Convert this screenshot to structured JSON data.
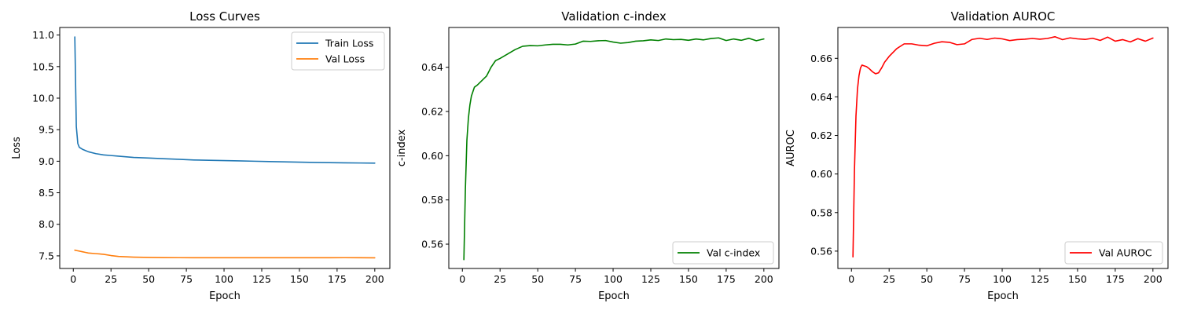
{
  "chart_data": [
    {
      "type": "line",
      "title": "Loss Curves",
      "xlabel": "Epoch",
      "ylabel": "Loss",
      "xlim": [
        -9,
        210
      ],
      "ylim": [
        7.3,
        11.12
      ],
      "xticks": [
        0,
        25,
        50,
        75,
        100,
        125,
        150,
        175,
        200
      ],
      "yticks": [
        7.5,
        8.0,
        8.5,
        9.0,
        9.5,
        10.0,
        10.5,
        11.0
      ],
      "ytick_decimals": 1,
      "grid": false,
      "legend_position": "top-right",
      "x": [
        1,
        2,
        3,
        4,
        6,
        8,
        10,
        15,
        20,
        25,
        30,
        40,
        50,
        60,
        70,
        80,
        90,
        100,
        110,
        120,
        130,
        140,
        150,
        160,
        170,
        180,
        190,
        200
      ],
      "series": [
        {
          "name": "Train Loss",
          "color": "#1f77b4",
          "values": [
            10.97,
            9.55,
            9.28,
            9.22,
            9.19,
            9.17,
            9.15,
            9.12,
            9.1,
            9.09,
            9.08,
            9.06,
            9.05,
            9.04,
            9.03,
            9.02,
            9.015,
            9.01,
            9.005,
            9.0,
            8.995,
            8.99,
            8.985,
            8.98,
            8.978,
            8.975,
            8.972,
            8.97
          ]
        },
        {
          "name": "Val Loss",
          "color": "#ff7f0e",
          "values": [
            7.59,
            7.585,
            7.58,
            7.575,
            7.565,
            7.555,
            7.545,
            7.535,
            7.525,
            7.505,
            7.49,
            7.48,
            7.475,
            7.472,
            7.471,
            7.47,
            7.47,
            7.47,
            7.47,
            7.47,
            7.47,
            7.47,
            7.47,
            7.47,
            7.47,
            7.471,
            7.47,
            7.469
          ]
        }
      ]
    },
    {
      "type": "line",
      "title": "Validation c-index",
      "xlabel": "Epoch",
      "ylabel": "c-index",
      "xlim": [
        -9,
        210
      ],
      "ylim": [
        0.549,
        0.658
      ],
      "xticks": [
        0,
        25,
        50,
        75,
        100,
        125,
        150,
        175,
        200
      ],
      "yticks": [
        0.56,
        0.58,
        0.6,
        0.62,
        0.64
      ],
      "ytick_decimals": 2,
      "grid": false,
      "legend_position": "bottom-right",
      "x": [
        1,
        2,
        3,
        4,
        5,
        6,
        8,
        10,
        13,
        16,
        19,
        22,
        25,
        30,
        35,
        40,
        45,
        50,
        55,
        60,
        65,
        70,
        75,
        80,
        85,
        90,
        95,
        100,
        105,
        110,
        115,
        120,
        125,
        130,
        135,
        140,
        145,
        150,
        155,
        160,
        165,
        170,
        175,
        180,
        185,
        190,
        195,
        200
      ],
      "series": [
        {
          "name": "Val c-index",
          "color": "#008000",
          "values": [
            0.553,
            0.585,
            0.607,
            0.617,
            0.623,
            0.627,
            0.631,
            0.632,
            0.634,
            0.636,
            0.64,
            0.643,
            0.644,
            0.646,
            0.648,
            0.6495,
            0.6498,
            0.6497,
            0.6501,
            0.6504,
            0.6504,
            0.6501,
            0.6505,
            0.6518,
            0.6517,
            0.652,
            0.6521,
            0.6514,
            0.6509,
            0.6512,
            0.6518,
            0.652,
            0.6524,
            0.6521,
            0.6528,
            0.6525,
            0.6526,
            0.6522,
            0.6528,
            0.6524,
            0.653,
            0.6533,
            0.6521,
            0.6528,
            0.6522,
            0.6531,
            0.652,
            0.6528
          ]
        }
      ]
    },
    {
      "type": "line",
      "title": "Validation AUROC",
      "xlabel": "Epoch",
      "ylabel": "AUROC",
      "xlim": [
        -9,
        210
      ],
      "ylim": [
        0.551,
        0.676
      ],
      "xticks": [
        0,
        25,
        50,
        75,
        100,
        125,
        150,
        175,
        200
      ],
      "yticks": [
        0.56,
        0.58,
        0.6,
        0.62,
        0.64,
        0.66
      ],
      "ytick_decimals": 2,
      "grid": false,
      "legend_position": "bottom-right",
      "x": [
        1,
        2,
        3,
        4,
        5,
        6,
        7,
        8,
        10,
        12,
        14,
        16,
        18,
        20,
        22,
        25,
        30,
        35,
        40,
        45,
        50,
        55,
        60,
        65,
        70,
        75,
        80,
        85,
        90,
        95,
        100,
        105,
        110,
        115,
        120,
        125,
        130,
        135,
        140,
        145,
        150,
        155,
        160,
        165,
        170,
        175,
        180,
        185,
        190,
        195,
        200
      ],
      "series": [
        {
          "name": "Val AUROC",
          "color": "#ff0000",
          "values": [
            0.557,
            0.602,
            0.63,
            0.644,
            0.651,
            0.655,
            0.6565,
            0.6562,
            0.6557,
            0.6545,
            0.653,
            0.652,
            0.6525,
            0.655,
            0.658,
            0.661,
            0.665,
            0.6675,
            0.6675,
            0.6668,
            0.6665,
            0.6678,
            0.6686,
            0.6683,
            0.6671,
            0.6675,
            0.6698,
            0.6704,
            0.6698,
            0.6705,
            0.6701,
            0.6692,
            0.6697,
            0.6699,
            0.6703,
            0.6699,
            0.6703,
            0.6712,
            0.6697,
            0.6706,
            0.6701,
            0.6698,
            0.6704,
            0.6693,
            0.671,
            0.6689,
            0.6697,
            0.6685,
            0.6702,
            0.6689,
            0.6705
          ]
        }
      ]
    }
  ]
}
